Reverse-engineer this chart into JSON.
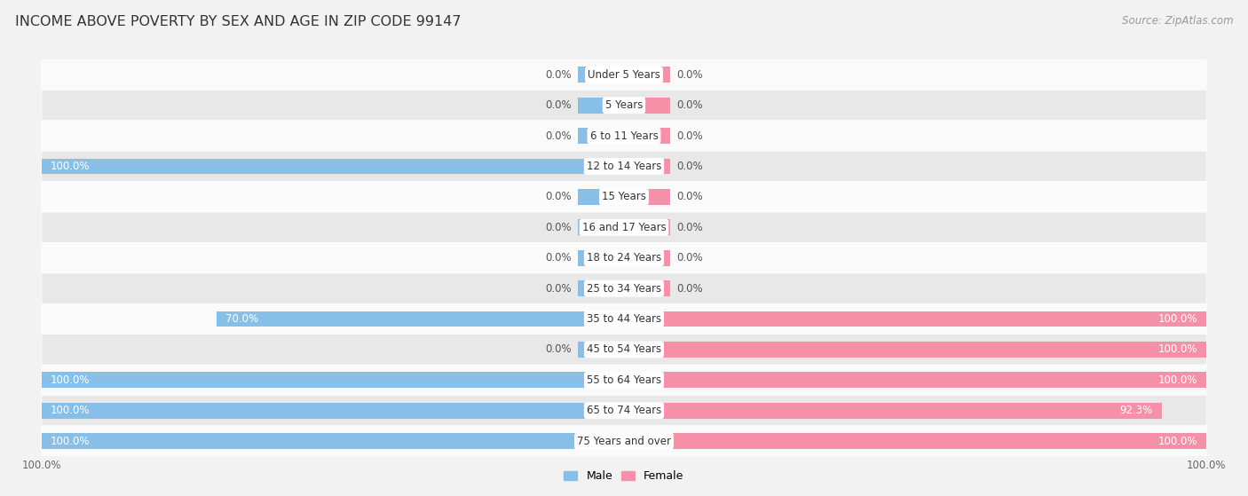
{
  "title": "INCOME ABOVE POVERTY BY SEX AND AGE IN ZIP CODE 99147",
  "source": "Source: ZipAtlas.com",
  "categories": [
    "Under 5 Years",
    "5 Years",
    "6 to 11 Years",
    "12 to 14 Years",
    "15 Years",
    "16 and 17 Years",
    "18 to 24 Years",
    "25 to 34 Years",
    "35 to 44 Years",
    "45 to 54 Years",
    "55 to 64 Years",
    "65 to 74 Years",
    "75 Years and over"
  ],
  "male_values": [
    0.0,
    0.0,
    0.0,
    100.0,
    0.0,
    0.0,
    0.0,
    0.0,
    70.0,
    0.0,
    100.0,
    100.0,
    100.0
  ],
  "female_values": [
    0.0,
    0.0,
    0.0,
    0.0,
    0.0,
    0.0,
    0.0,
    0.0,
    100.0,
    100.0,
    100.0,
    92.3,
    100.0
  ],
  "male_color": "#88bfe8",
  "female_color": "#f490a8",
  "male_label": "Male",
  "female_label": "Female",
  "background_color": "#f2f2f2",
  "row_bg_light": "#fafafa",
  "row_bg_dark": "#e8e8e8",
  "bar_height": 0.52,
  "title_fontsize": 11.5,
  "label_fontsize": 8.5,
  "category_fontsize": 8.5,
  "source_fontsize": 8.5,
  "stub_size": 8.0
}
